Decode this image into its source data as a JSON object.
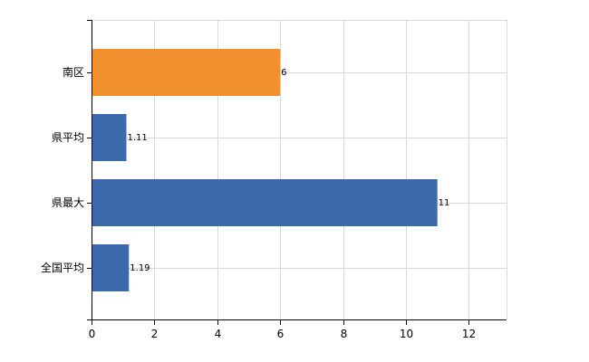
{
  "chart_data": {
    "type": "bar",
    "orientation": "horizontal",
    "title": "",
    "xlabel": "",
    "ylabel": "",
    "categories": [
      "南区",
      "県平均",
      "県最大",
      "全国平均"
    ],
    "values": [
      6,
      1.11,
      11,
      1.19
    ],
    "value_labels": [
      "6",
      "1.11",
      "11",
      "1.19"
    ],
    "bar_colors": [
      "#f0912d",
      "#3a6aaa",
      "#3a6aaa",
      "#3a6aaa"
    ],
    "xlim": [
      0,
      13.2
    ],
    "xticks": [
      0,
      2,
      4,
      6,
      8,
      10,
      12
    ],
    "xtick_labels": [
      "0",
      "2",
      "4",
      "6",
      "8",
      "10",
      "12"
    ],
    "grid": true,
    "grid_color": "#d9d9d9",
    "legend": "none"
  }
}
